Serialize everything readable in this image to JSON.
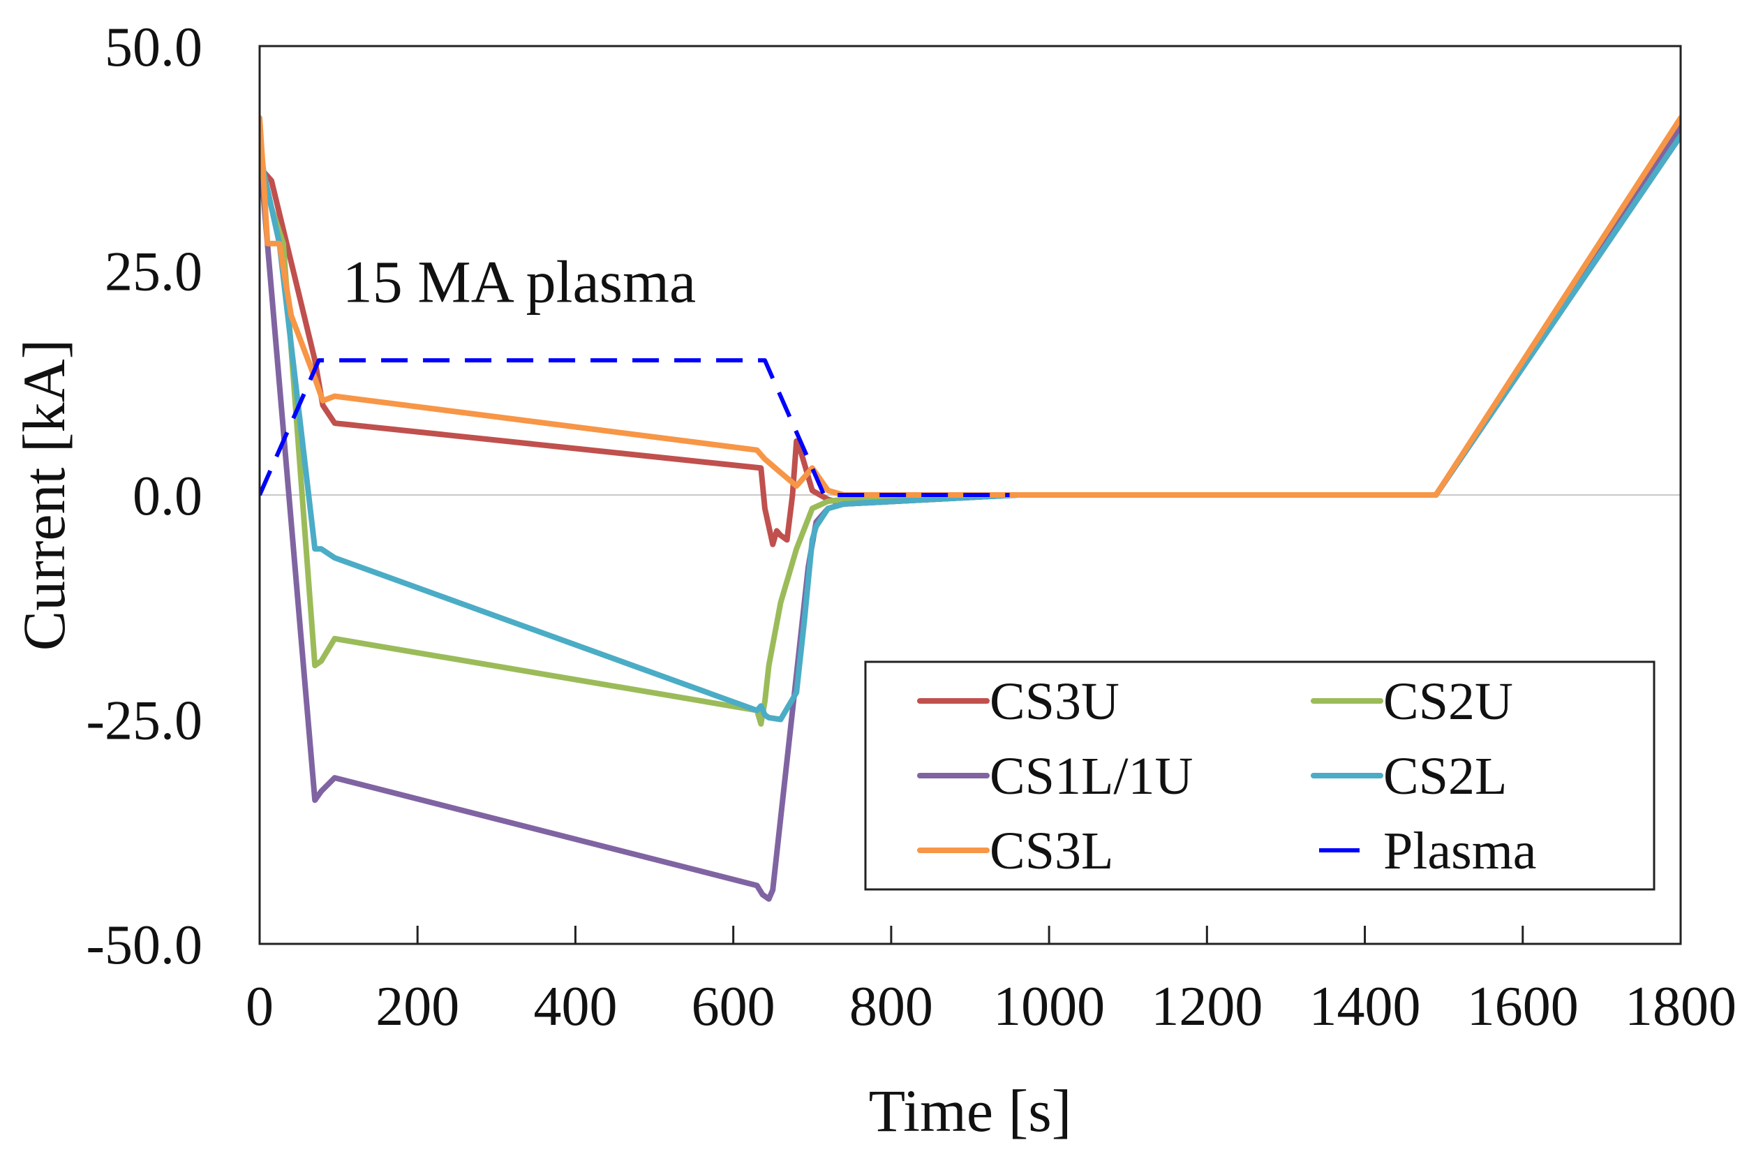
{
  "chart_data": {
    "type": "line",
    "title": "",
    "xlabel": "Time [s]",
    "ylabel": "Current [kA]",
    "xlim": [
      0,
      1800
    ],
    "ylim": [
      -50,
      50
    ],
    "x_ticks": [
      0,
      200,
      400,
      600,
      800,
      1000,
      1200,
      1400,
      1600,
      1800
    ],
    "x_tick_labels": [
      "0",
      "200",
      "400",
      "600",
      "800",
      "1000",
      "1200",
      "1400",
      "1600",
      "1800"
    ],
    "y_ticks": [
      50,
      25,
      0,
      -25,
      -50
    ],
    "y_tick_labels": [
      "50.0",
      "25.0",
      "0.0",
      "-25.0",
      "-50.0"
    ],
    "grid": false,
    "zero_line": true,
    "legend_position": "bottom-right",
    "annotations": [
      {
        "text": "15 MA plasma",
        "x": 105,
        "y": 21.5
      }
    ],
    "series": [
      {
        "name": "CS3U",
        "color": "#c0504d",
        "dash": "solid",
        "x": [
          0,
          5,
          15,
          70,
          80,
          95,
          635,
          640,
          650,
          655,
          660,
          668,
          675,
          680,
          685,
          700,
          720,
          740,
          960,
          1490,
          1800
        ],
        "y": [
          38,
          36,
          35,
          15,
          10,
          8,
          3,
          -1.5,
          -5.5,
          -4,
          -4.5,
          -5,
          0,
          6,
          5,
          0.5,
          -0.5,
          -1,
          0,
          0,
          40
        ]
      },
      {
        "name": "CS2U",
        "color": "#9bbb59",
        "dash": "solid",
        "x": [
          0,
          5,
          15,
          30,
          70,
          78,
          95,
          630,
          635,
          640,
          645,
          660,
          680,
          700,
          720,
          740,
          960,
          1490,
          1800
        ],
        "y": [
          40,
          36,
          32,
          28,
          -19,
          -18.5,
          -16,
          -24,
          -25.5,
          -23,
          -19,
          -12,
          -6,
          -1.5,
          -0.7,
          -0.5,
          0,
          0,
          41
        ]
      },
      {
        "name": "CS1L/1U",
        "color": "#8064a2",
        "dash": "solid",
        "x": [
          0,
          5,
          70,
          78,
          95,
          630,
          637,
          645,
          650,
          660,
          680,
          695,
          705,
          720,
          740,
          960,
          1490,
          1800
        ],
        "y": [
          40,
          33,
          -34,
          -33,
          -31.5,
          -43.5,
          -44.5,
          -45,
          -44,
          -36,
          -20,
          -8,
          -3,
          -1.5,
          -1,
          0,
          0,
          41
        ]
      },
      {
        "name": "CS2L",
        "color": "#4bacc6",
        "dash": "solid",
        "x": [
          0,
          5,
          15,
          25,
          70,
          78,
          95,
          630,
          635,
          640,
          645,
          660,
          670,
          680,
          690,
          700,
          705,
          720,
          740,
          960,
          1490,
          1800
        ],
        "y": [
          38,
          36,
          32,
          28,
          -6,
          -6,
          -7,
          -24,
          -23.5,
          -24.5,
          -24.8,
          -25,
          -23.5,
          -22,
          -14,
          -5,
          -3.5,
          -1.5,
          -1,
          0,
          0,
          40
        ]
      },
      {
        "name": "CS3L",
        "color": "#f79646",
        "dash": "solid",
        "x": [
          0,
          3,
          10,
          25,
          40,
          70,
          80,
          95,
          630,
          640,
          660,
          680,
          700,
          720,
          740,
          960,
          1490,
          1800
        ],
        "y": [
          42,
          38,
          28,
          28,
          20,
          13,
          10.5,
          11,
          5,
          4,
          2.5,
          1,
          3,
          0.5,
          0,
          0,
          0,
          42
        ]
      },
      {
        "name": "Plasma",
        "color": "#0000ff",
        "dash": "dashed",
        "x": [
          0,
          75,
          630,
          640,
          715,
          950
        ],
        "y": [
          0,
          15,
          15,
          15,
          0,
          0
        ]
      }
    ]
  }
}
